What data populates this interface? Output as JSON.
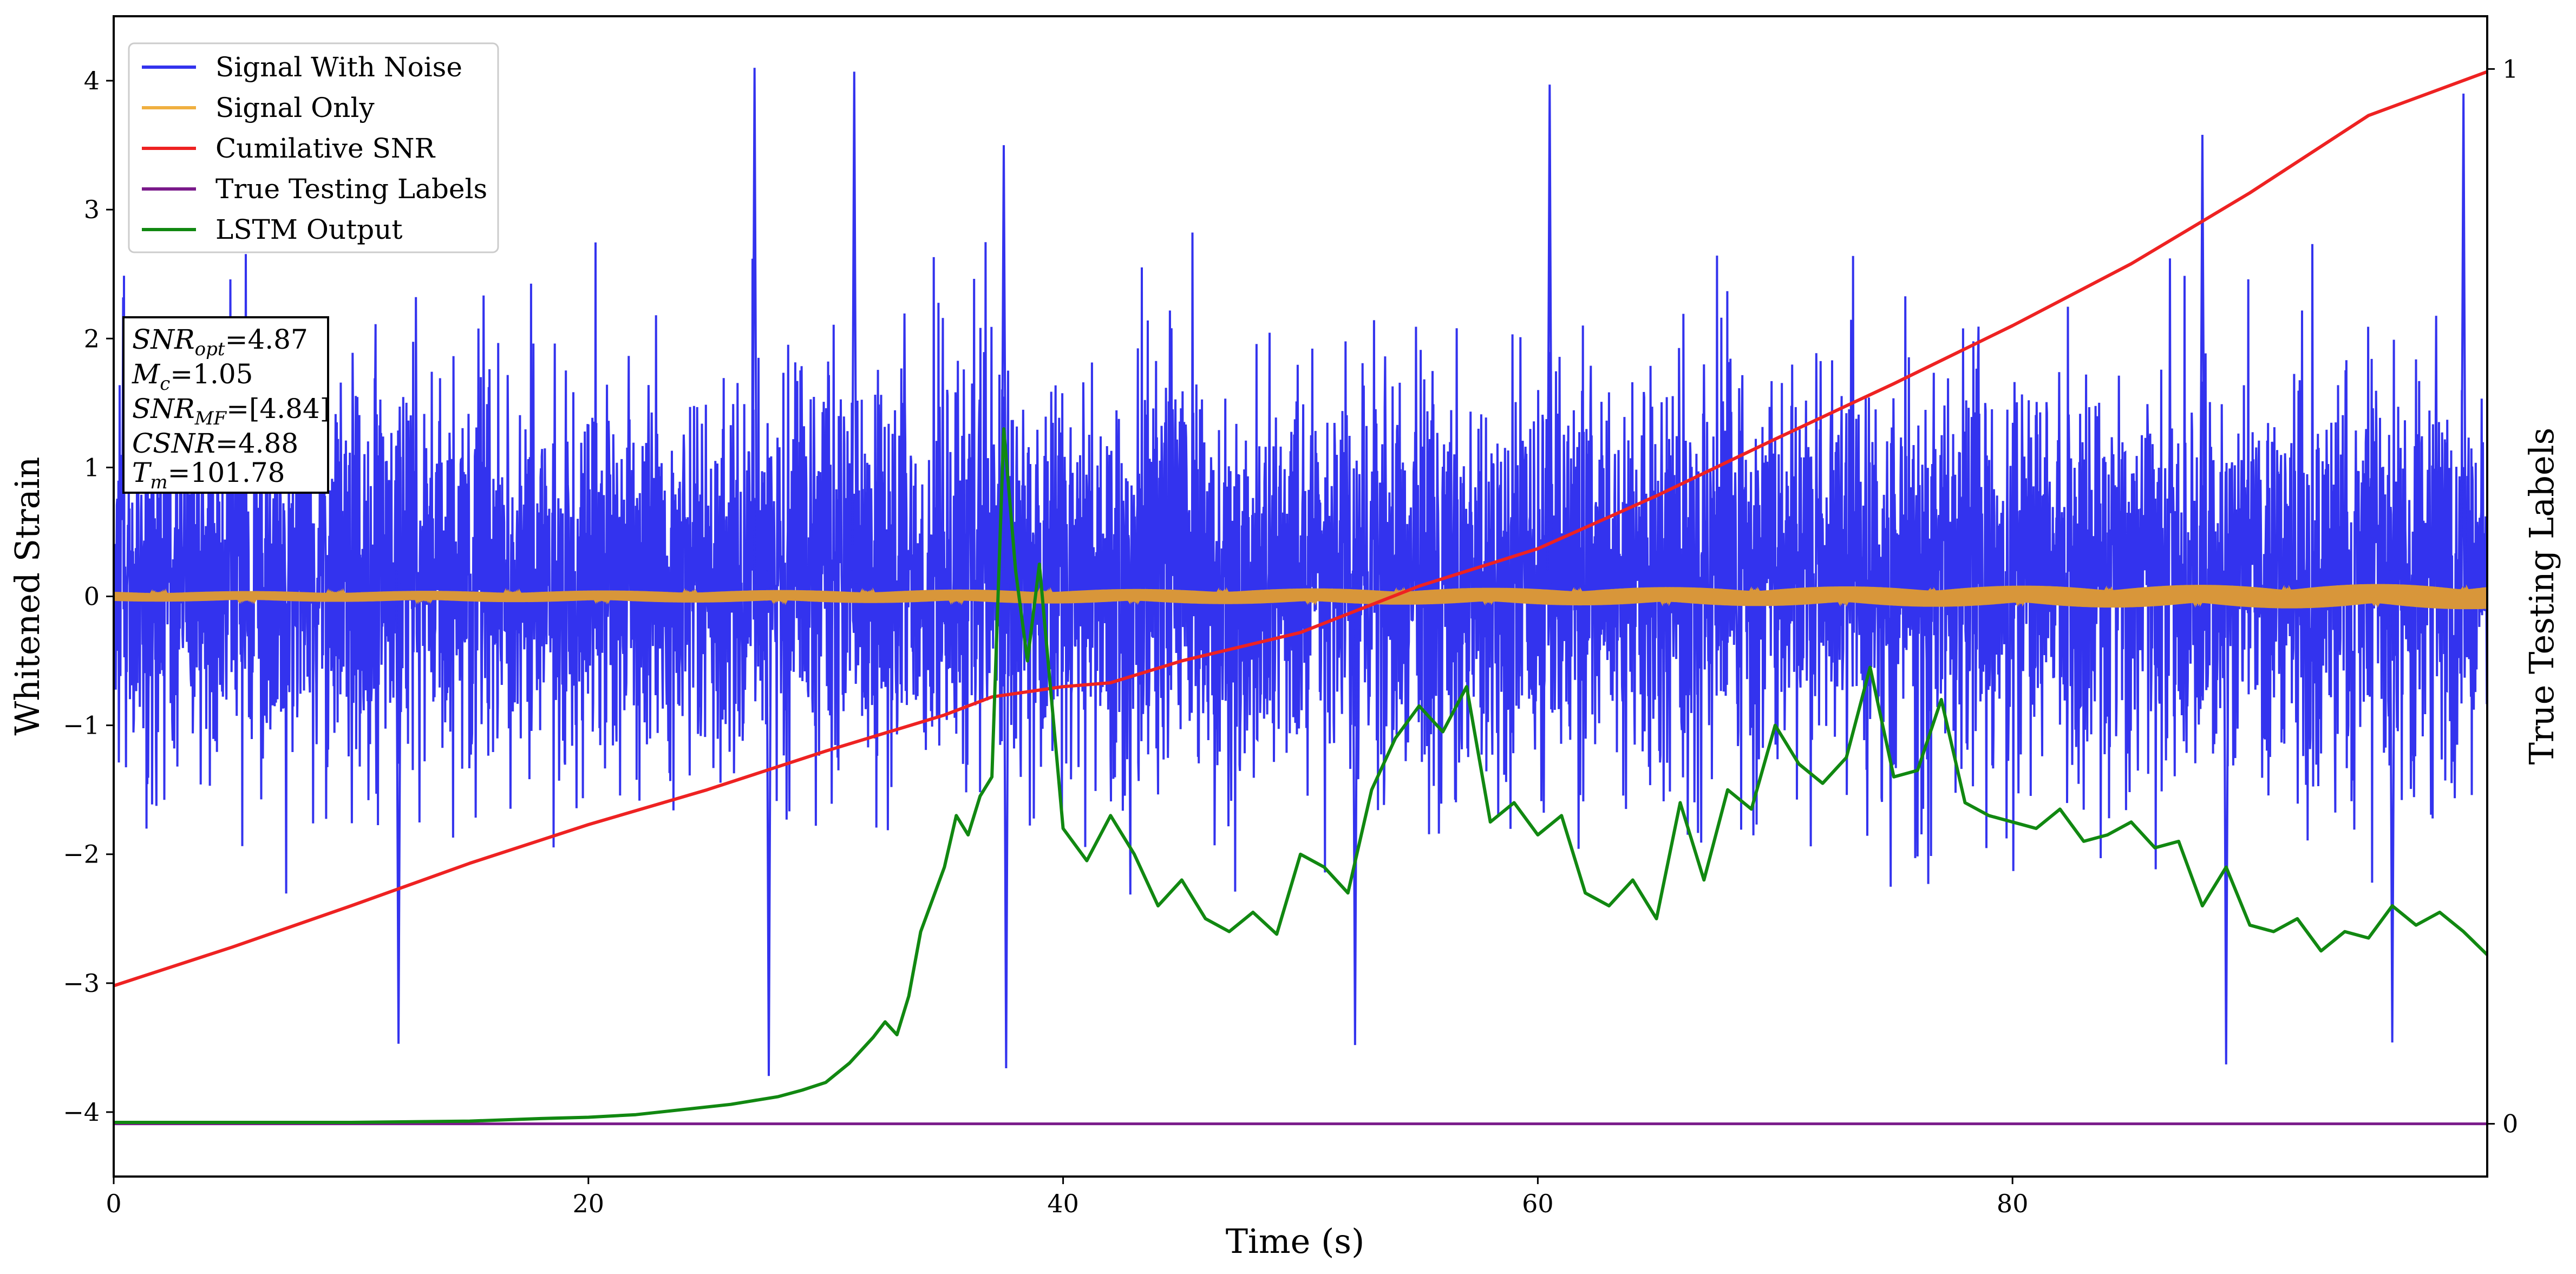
{
  "chart_data": {
    "type": "line",
    "xlabel": "Time (s)",
    "ylabel": "Whitened Strain",
    "ylabel_right": "True Testing Labels",
    "xlim": [
      0,
      100
    ],
    "ylim": [
      -4.5,
      4.5
    ],
    "ylim_right": [
      -0.05,
      1.05
    ],
    "x_ticks": [
      0,
      20,
      40,
      60,
      80
    ],
    "y_ticks": [
      -4,
      -3,
      -2,
      -1,
      0,
      1,
      2,
      3,
      4
    ],
    "y_ticks_right": [
      0,
      1
    ],
    "grid": false,
    "legend_position": "top-left",
    "series": [
      {
        "name": "Signal With Noise",
        "color": "#3333ee",
        "kind": "noise",
        "typical_range": [
          -1.6,
          2.1
        ],
        "extreme_spikes": [
          {
            "x": 12.0,
            "y": -3.47
          },
          {
            "x": 27.0,
            "y": 4.1
          },
          {
            "x": 27.6,
            "y": -3.72
          },
          {
            "x": 31.2,
            "y": 4.07
          },
          {
            "x": 37.5,
            "y": 3.5
          },
          {
            "x": 37.6,
            "y": -3.66
          },
          {
            "x": 60.5,
            "y": 3.97
          },
          {
            "x": 52.3,
            "y": -3.48
          },
          {
            "x": 88.0,
            "y": 3.58
          },
          {
            "x": 89.0,
            "y": -3.63
          },
          {
            "x": 96.0,
            "y": -3.46
          },
          {
            "x": 99.0,
            "y": 3.9
          }
        ]
      },
      {
        "name": "Signal Only",
        "color": "#d8963a",
        "kind": "chirp",
        "amplitude_start": 0.04,
        "amplitude_end": 0.1
      },
      {
        "name": "Cumilative SNR",
        "color": "#ee2222",
        "axis": "left",
        "x": [
          0,
          5,
          10,
          15,
          20,
          25,
          30,
          35,
          37,
          40,
          42,
          45,
          50,
          55,
          60,
          65,
          70,
          75,
          80,
          85,
          90,
          95,
          100
        ],
        "y": [
          -3.02,
          -2.72,
          -2.4,
          -2.07,
          -1.77,
          -1.5,
          -1.2,
          -0.92,
          -0.78,
          -0.7,
          -0.67,
          -0.5,
          -0.28,
          0.08,
          0.37,
          0.78,
          1.22,
          1.65,
          2.1,
          2.58,
          3.13,
          3.73,
          4.07
        ]
      },
      {
        "name": "True Testing Labels",
        "color": "#7a1a8a",
        "axis": "right",
        "x": [
          0,
          100
        ],
        "y": [
          0,
          0
        ]
      },
      {
        "name": "LSTM Output",
        "color": "#118811",
        "axis": "left",
        "x": [
          0,
          10,
          15,
          18,
          20,
          22,
          24,
          26,
          28,
          29,
          30,
          31,
          32,
          32.5,
          33,
          33.5,
          34,
          35,
          35.5,
          36,
          36.5,
          37,
          37.5,
          38,
          38.5,
          39,
          40,
          41,
          42,
          43,
          44,
          45,
          46,
          47,
          48,
          49,
          50,
          51,
          52,
          53,
          54,
          55,
          56,
          57,
          58,
          59,
          60,
          61,
          62,
          63,
          64,
          65,
          66,
          67,
          68,
          69,
          70,
          71,
          72,
          73,
          74,
          75,
          76,
          77,
          78,
          79,
          80,
          81,
          82,
          83,
          84,
          85,
          86,
          87,
          88,
          89,
          90,
          91,
          92,
          93,
          94,
          95,
          96,
          97,
          98,
          99,
          100
        ],
        "y": [
          -4.08,
          -4.08,
          -4.07,
          -4.05,
          -4.04,
          -4.02,
          -3.98,
          -3.94,
          -3.88,
          -3.83,
          -3.77,
          -3.62,
          -3.42,
          -3.3,
          -3.4,
          -3.1,
          -2.6,
          -2.1,
          -1.7,
          -1.85,
          -1.55,
          -1.4,
          1.3,
          0.2,
          -0.5,
          0.25,
          -1.8,
          -2.05,
          -1.7,
          -2.0,
          -2.4,
          -2.2,
          -2.5,
          -2.6,
          -2.45,
          -2.62,
          -2.0,
          -2.1,
          -2.3,
          -1.5,
          -1.1,
          -0.85,
          -1.05,
          -0.7,
          -1.75,
          -1.6,
          -1.85,
          -1.7,
          -2.3,
          -2.4,
          -2.2,
          -2.5,
          -1.6,
          -2.2,
          -1.5,
          -1.65,
          -1.0,
          -1.3,
          -1.45,
          -1.25,
          -0.55,
          -1.4,
          -1.35,
          -0.8,
          -1.6,
          -1.7,
          -1.75,
          -1.8,
          -1.65,
          -1.9,
          -1.85,
          -1.75,
          -1.95,
          -1.9,
          -2.4,
          -2.1,
          -2.55,
          -2.6,
          -2.5,
          -2.75,
          -2.6,
          -2.65,
          -2.4,
          -2.55,
          -2.45,
          -2.6,
          -2.78
        ]
      }
    ]
  },
  "legend": {
    "items": [
      {
        "label": "Signal With Noise",
        "color": "#3333ee"
      },
      {
        "label": "Signal Only",
        "color": "#f0b040"
      },
      {
        "label": "Cumilative SNR",
        "color": "#ee2222"
      },
      {
        "label": "True Testing Labels",
        "color": "#7a1a8a"
      },
      {
        "label": "LSTM Output",
        "color": "#118811"
      }
    ]
  },
  "info_box": {
    "snr_opt_base": "SNR",
    "snr_opt_sub": "opt",
    "snr_opt_val": "=4.87",
    "mc_base": "M",
    "mc_sub": "c",
    "mc_val": "=1.05",
    "snr_mf_base": "SNR",
    "snr_mf_sub": "MF",
    "snr_mf_val": "=[4.84]",
    "csnr_base": "CSNR",
    "csnr_val": "=4.88",
    "tm_base": "T",
    "tm_sub": "m",
    "tm_val": "=101.78"
  }
}
